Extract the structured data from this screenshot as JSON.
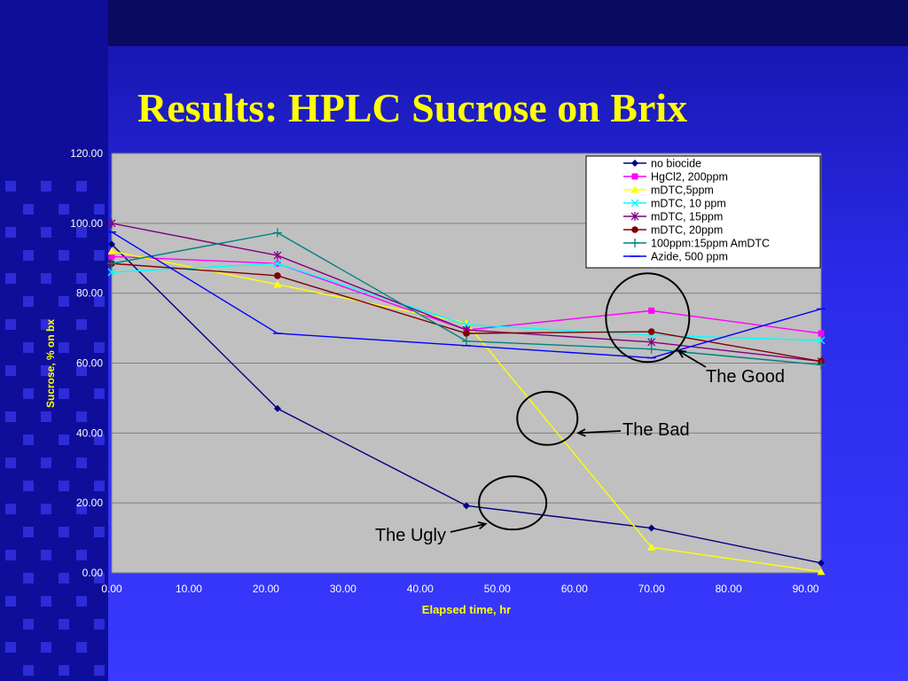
{
  "slide": {
    "title": "Results: HPLC Sucrose on Brix",
    "colors": {
      "title": "#ffff00",
      "axis_text": "#ffff00",
      "tick_text": "#ffffff",
      "plot_bg": "#c0c0c0",
      "background": "#2a2ae8"
    }
  },
  "chart_data": {
    "type": "line",
    "xlabel": "Elapsed time, hr",
    "ylabel": "Sucrose, % on bx",
    "xlim": [
      0,
      92
    ],
    "ylim": [
      0,
      120
    ],
    "xticks": [
      "0.00",
      "10.00",
      "20.00",
      "30.00",
      "40.00",
      "50.00",
      "60.00",
      "70.00",
      "80.00",
      "90.00"
    ],
    "yticks": [
      "0.00",
      "20.00",
      "40.00",
      "60.00",
      "80.00",
      "100.00",
      "120.00"
    ],
    "grid": "horizontal",
    "legend_position": "top-right",
    "series": [
      {
        "name": "no biocide",
        "color": "#000080",
        "marker": "diamond",
        "points": [
          [
            0,
            94
          ],
          [
            21.5,
            47
          ],
          [
            46,
            19.2
          ],
          [
            70,
            12.8
          ],
          [
            92,
            2.8
          ]
        ]
      },
      {
        "name": "HgCl2, 200ppm",
        "color": "#ff00ff",
        "marker": "square",
        "points": [
          [
            0,
            90.5
          ],
          [
            21.5,
            88.5
          ],
          [
            46,
            69.5
          ],
          [
            70,
            75
          ],
          [
            92,
            68.5
          ]
        ]
      },
      {
        "name": "mDTC,5ppm",
        "color": "#ffff00",
        "marker": "triangle",
        "points": [
          [
            0,
            92
          ],
          [
            21.5,
            82.5
          ],
          [
            46,
            71.5
          ],
          [
            70,
            7.3
          ],
          [
            92,
            0.3
          ]
        ]
      },
      {
        "name": "mDTC, 10 ppm",
        "color": "#00ffff",
        "marker": "x",
        "points": [
          [
            0,
            86
          ],
          [
            21.5,
            88.5
          ],
          [
            46,
            71
          ],
          [
            70,
            68
          ],
          [
            92,
            66.5
          ]
        ]
      },
      {
        "name": "mDTC, 15ppm",
        "color": "#800080",
        "marker": "star",
        "points": [
          [
            0,
            100
          ],
          [
            21.5,
            90.8
          ],
          [
            46,
            69.5
          ],
          [
            70,
            66
          ],
          [
            92,
            60.5
          ]
        ]
      },
      {
        "name": "mDTC, 20ppm",
        "color": "#800000",
        "marker": "circle",
        "points": [
          [
            0,
            88.5
          ],
          [
            21.5,
            85
          ],
          [
            46,
            68.5
          ],
          [
            70,
            69
          ],
          [
            92,
            60.5
          ]
        ]
      },
      {
        "name": "100ppm:15ppm AmDTC",
        "color": "#008080",
        "marker": "plus",
        "points": [
          [
            0,
            88.5
          ],
          [
            21.5,
            97.3
          ],
          [
            46,
            66.3
          ],
          [
            70,
            64
          ],
          [
            92,
            59.5
          ]
        ]
      },
      {
        "name": "Azide, 500 ppm",
        "color": "#0000ff",
        "marker": "dash",
        "points": [
          [
            0,
            97.5
          ],
          [
            21.5,
            68.5
          ],
          [
            46,
            65
          ],
          [
            70,
            61.5
          ],
          [
            92,
            75.5
          ]
        ]
      }
    ],
    "annotations": [
      {
        "text": "The Good",
        "circle_center": [
          69.5,
          73
        ],
        "arrow_to": [
          73.5,
          63.5
        ]
      },
      {
        "text": "The Bad",
        "circle_center": [
          56.5,
          44.2
        ],
        "arrow_to": [
          60.5,
          40
        ]
      },
      {
        "text": "The Ugly",
        "circle_center": [
          52,
          20
        ],
        "arrow_to": [
          48.5,
          14
        ]
      }
    ]
  }
}
